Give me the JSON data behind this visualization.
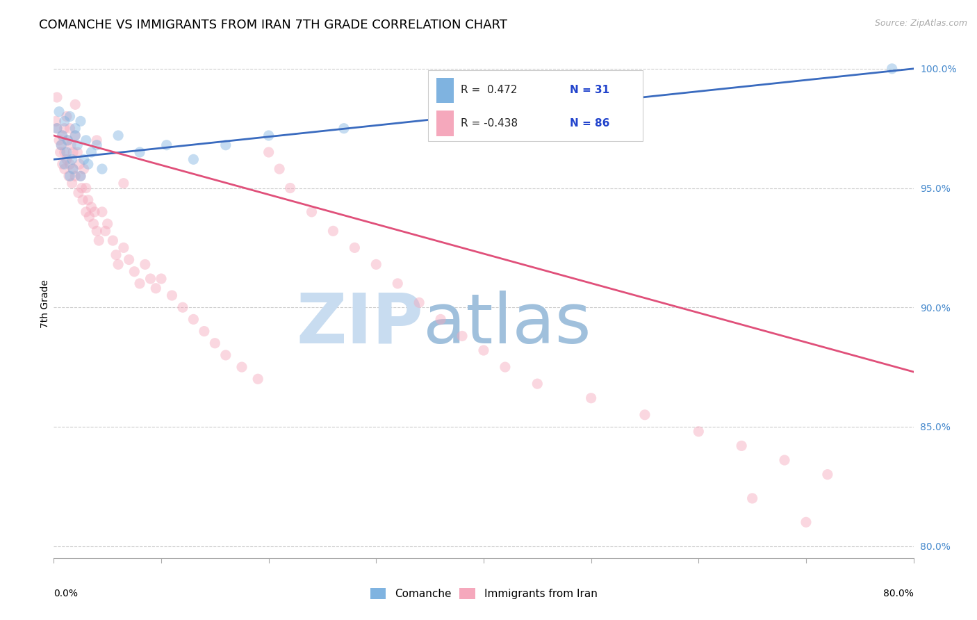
{
  "title": "COMANCHE VS IMMIGRANTS FROM IRAN 7TH GRADE CORRELATION CHART",
  "source": "Source: ZipAtlas.com",
  "ylabel": "7th Grade",
  "xlim": [
    0.0,
    0.8
  ],
  "ylim": [
    0.795,
    1.008
  ],
  "yticks": [
    0.8,
    0.85,
    0.9,
    0.95,
    1.0
  ],
  "ytick_labels": [
    "80.0%",
    "85.0%",
    "90.0%",
    "95.0%",
    "100.0%"
  ],
  "legend_r_blue": "R =  0.472",
  "legend_n_blue": "N = 31",
  "legend_r_pink": "R = -0.438",
  "legend_n_pink": "N = 86",
  "blue_color": "#7fb3e0",
  "pink_color": "#f5a8bc",
  "blue_line_color": "#3a6bbf",
  "pink_line_color": "#e0507a",
  "watermark_zip": "ZIP",
  "watermark_atlas": "atlas",
  "blue_scatter_x": [
    0.003,
    0.005,
    0.007,
    0.008,
    0.01,
    0.01,
    0.012,
    0.013,
    0.015,
    0.015,
    0.017,
    0.018,
    0.02,
    0.02,
    0.022,
    0.025,
    0.025,
    0.028,
    0.03,
    0.032,
    0.035,
    0.04,
    0.045,
    0.06,
    0.08,
    0.105,
    0.13,
    0.16,
    0.2,
    0.27,
    0.78
  ],
  "blue_scatter_y": [
    0.975,
    0.982,
    0.968,
    0.972,
    0.96,
    0.978,
    0.965,
    0.97,
    0.955,
    0.98,
    0.962,
    0.958,
    0.972,
    0.975,
    0.968,
    0.955,
    0.978,
    0.962,
    0.97,
    0.96,
    0.965,
    0.968,
    0.958,
    0.972,
    0.965,
    0.968,
    0.962,
    0.968,
    0.972,
    0.975,
    1.0
  ],
  "pink_scatter_x": [
    0.002,
    0.003,
    0.005,
    0.006,
    0.007,
    0.008,
    0.008,
    0.01,
    0.01,
    0.01,
    0.012,
    0.012,
    0.013,
    0.014,
    0.015,
    0.015,
    0.016,
    0.017,
    0.018,
    0.018,
    0.02,
    0.02,
    0.022,
    0.023,
    0.024,
    0.025,
    0.026,
    0.027,
    0.028,
    0.03,
    0.03,
    0.032,
    0.033,
    0.035,
    0.037,
    0.038,
    0.04,
    0.042,
    0.045,
    0.048,
    0.05,
    0.055,
    0.058,
    0.06,
    0.065,
    0.07,
    0.075,
    0.08,
    0.085,
    0.09,
    0.095,
    0.1,
    0.11,
    0.12,
    0.13,
    0.14,
    0.15,
    0.16,
    0.175,
    0.19,
    0.2,
    0.21,
    0.22,
    0.24,
    0.26,
    0.28,
    0.3,
    0.32,
    0.34,
    0.36,
    0.38,
    0.4,
    0.42,
    0.45,
    0.5,
    0.55,
    0.6,
    0.64,
    0.68,
    0.72,
    0.003,
    0.02,
    0.04,
    0.065,
    0.65,
    0.7
  ],
  "pink_scatter_y": [
    0.978,
    0.975,
    0.97,
    0.965,
    0.968,
    0.972,
    0.96,
    0.975,
    0.965,
    0.958,
    0.98,
    0.962,
    0.97,
    0.955,
    0.975,
    0.96,
    0.968,
    0.952,
    0.965,
    0.958,
    0.972,
    0.955,
    0.965,
    0.948,
    0.96,
    0.955,
    0.95,
    0.945,
    0.958,
    0.95,
    0.94,
    0.945,
    0.938,
    0.942,
    0.935,
    0.94,
    0.932,
    0.928,
    0.94,
    0.932,
    0.935,
    0.928,
    0.922,
    0.918,
    0.925,
    0.92,
    0.915,
    0.91,
    0.918,
    0.912,
    0.908,
    0.912,
    0.905,
    0.9,
    0.895,
    0.89,
    0.885,
    0.88,
    0.875,
    0.87,
    0.965,
    0.958,
    0.95,
    0.94,
    0.932,
    0.925,
    0.918,
    0.91,
    0.902,
    0.895,
    0.888,
    0.882,
    0.875,
    0.868,
    0.862,
    0.855,
    0.848,
    0.842,
    0.836,
    0.83,
    0.988,
    0.985,
    0.97,
    0.952,
    0.82,
    0.81
  ],
  "blue_line_x": [
    0.0,
    0.8
  ],
  "blue_line_y": [
    0.962,
    1.0
  ],
  "pink_line_x": [
    0.0,
    0.8
  ],
  "pink_line_y": [
    0.972,
    0.873
  ],
  "grid_color": "#cccccc",
  "background_color": "#ffffff",
  "title_fontsize": 13,
  "axis_label_fontsize": 10,
  "tick_fontsize": 10,
  "scatter_size": 120,
  "scatter_alpha": 0.45
}
